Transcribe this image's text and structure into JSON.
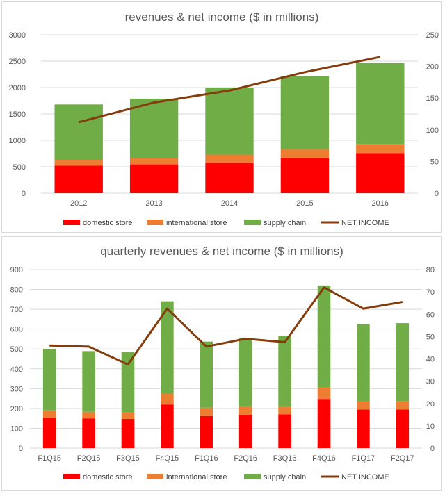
{
  "colors": {
    "domestic": "#ff0000",
    "international": "#ed7d31",
    "supply": "#70ad47",
    "net_income": "#843c0c",
    "grid": "#d9d9d9"
  },
  "chart_data": [
    {
      "type": "bar",
      "stacked": true,
      "title": "revenues & net income ($ in millions)",
      "categories": [
        "2012",
        "2013",
        "2014",
        "2015",
        "2016"
      ],
      "ylim": [
        0,
        3000
      ],
      "y_ticks": [
        "0",
        "500",
        "1000",
        "1500",
        "2000",
        "2500",
        "3000"
      ],
      "y2lim": [
        0,
        250
      ],
      "y2_ticks": [
        "0",
        "50",
        "100",
        "150",
        "200",
        "250"
      ],
      "grid": true,
      "legend_position": "bottom",
      "series": [
        {
          "name": "domestic store",
          "values": [
            520,
            545,
            575,
            660,
            760
          ]
        },
        {
          "name": "international store",
          "values": [
            110,
            125,
            155,
            175,
            170
          ]
        },
        {
          "name": "supply chain",
          "values": [
            1050,
            1120,
            1270,
            1385,
            1535
          ]
        }
      ],
      "line_series": {
        "name": "NET INCOME",
        "axis": "secondary",
        "values": [
          112,
          143,
          162,
          191,
          215
        ]
      }
    },
    {
      "type": "bar",
      "stacked": true,
      "title": "quarterly revenues & net income ($ in millions)",
      "categories": [
        "F1Q15",
        "F2Q15",
        "F3Q15",
        "F4Q15",
        "F1Q16",
        "F2Q16",
        "F3Q16",
        "F4Q16",
        "F1Q17",
        "F2Q17"
      ],
      "ylim": [
        0,
        900
      ],
      "y_ticks": [
        "0",
        "100",
        "200",
        "300",
        "400",
        "500",
        "600",
        "700",
        "800",
        "900"
      ],
      "y2lim": [
        0,
        80
      ],
      "y2_ticks": [
        "0",
        "10",
        "20",
        "30",
        "40",
        "50",
        "60",
        "70",
        "80"
      ],
      "grid": true,
      "legend_position": "bottom",
      "series": [
        {
          "name": "domestic store",
          "values": [
            152,
            150,
            147,
            220,
            162,
            168,
            170,
            248,
            195,
            195
          ]
        },
        {
          "name": "international store",
          "values": [
            38,
            33,
            33,
            55,
            42,
            40,
            40,
            60,
            40,
            42
          ]
        },
        {
          "name": "supply chain",
          "values": [
            310,
            306,
            305,
            465,
            333,
            347,
            356,
            512,
            390,
            393
          ]
        }
      ],
      "line_series": {
        "name": "NET INCOME",
        "axis": "secondary",
        "values": [
          46,
          45.5,
          37.5,
          62.5,
          45.5,
          49,
          47.5,
          72,
          62.5,
          65.5
        ]
      }
    }
  ]
}
